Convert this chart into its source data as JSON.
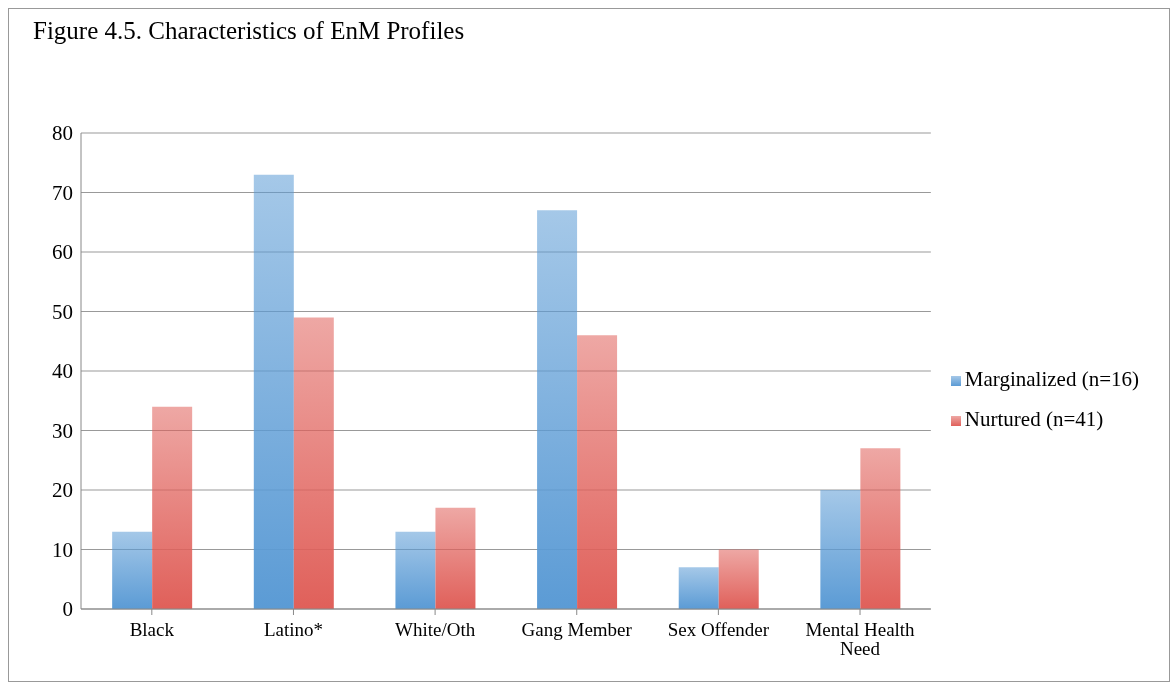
{
  "chart_data": {
    "type": "bar",
    "title": "Figure 4.5. Characteristics of EnM Profiles",
    "categories": [
      "Black",
      "Latino*",
      "White/Oth",
      "Gang Member",
      "Sex Offender",
      "Mental Health Need"
    ],
    "series": [
      {
        "name": "Marginalized (n=16)",
        "color": "#5b9bd5",
        "values": [
          13,
          73,
          13,
          67,
          7,
          20
        ]
      },
      {
        "name": "Nurtured (n=41)",
        "color": "#e0605a",
        "values": [
          34,
          49,
          17,
          46,
          10,
          27
        ]
      }
    ],
    "ylim": [
      0,
      80
    ],
    "yticks": [
      0,
      10,
      20,
      30,
      40,
      50,
      60,
      70,
      80
    ],
    "grid": "y",
    "legend": "right"
  }
}
